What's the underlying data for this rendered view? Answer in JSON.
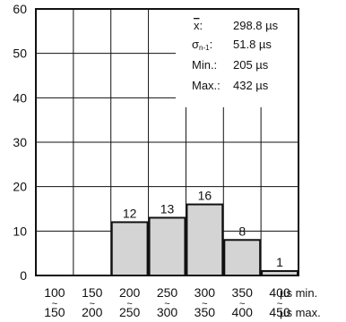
{
  "chart_data": {
    "type": "bar",
    "title": "",
    "xlabel": "",
    "ylabel": "",
    "ylim": [
      0,
      60
    ],
    "yticks": [
      0,
      10,
      20,
      30,
      40,
      50,
      60
    ],
    "grid": true,
    "bins": [
      {
        "min": "100",
        "max": "150",
        "count": 0
      },
      {
        "min": "150",
        "max": "200",
        "count": 0
      },
      {
        "min": "200",
        "max": "250",
        "count": 12
      },
      {
        "min": "250",
        "max": "300",
        "count": 13
      },
      {
        "min": "300",
        "max": "350",
        "count": 16
      },
      {
        "min": "350",
        "max": "400",
        "count": 8
      },
      {
        "min": "400",
        "max": "450",
        "count": 1
      }
    ],
    "unit_min_label": "µs min.",
    "unit_max_label": "µs max.",
    "range_separator": "~",
    "stats": [
      {
        "label": "x̄:",
        "value": "298.8 µs"
      },
      {
        "label": "σn-1:",
        "value": "51.8 µs"
      },
      {
        "label": "Min.:",
        "value": "205 µs"
      },
      {
        "label": "Max.:",
        "value": "432 µs"
      }
    ],
    "colors": {
      "bar": "#d4d4d4",
      "grid": "#111111",
      "axis": "#111111"
    }
  }
}
